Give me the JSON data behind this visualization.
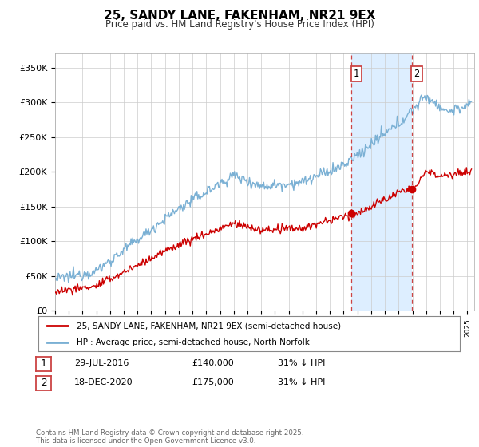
{
  "title": "25, SANDY LANE, FAKENHAM, NR21 9EX",
  "subtitle": "Price paid vs. HM Land Registry's House Price Index (HPI)",
  "ylabel_ticks": [
    "£0",
    "£50K",
    "£100K",
    "£150K",
    "£200K",
    "£250K",
    "£300K",
    "£350K"
  ],
  "ytick_values": [
    0,
    50000,
    100000,
    150000,
    200000,
    250000,
    300000,
    350000
  ],
  "ylim": [
    0,
    370000
  ],
  "xlim_start": 1995.0,
  "xlim_end": 2025.5,
  "line1_color": "#cc0000",
  "line2_color": "#7ab0d4",
  "shade_color": "#ddeeff",
  "vline1_x": 2016.57,
  "vline2_x": 2020.96,
  "vline_color": "#cc4444",
  "marker1_x": 2016.57,
  "marker1_y": 140000,
  "marker2_x": 2020.96,
  "marker2_y": 175000,
  "legend_line1": "25, SANDY LANE, FAKENHAM, NR21 9EX (semi-detached house)",
  "legend_line2": "HPI: Average price, semi-detached house, North Norfolk",
  "table_row1": [
    "1",
    "29-JUL-2016",
    "£140,000",
    "31% ↓ HPI"
  ],
  "table_row2": [
    "2",
    "18-DEC-2020",
    "£175,000",
    "31% ↓ HPI"
  ],
  "footnote": "Contains HM Land Registry data © Crown copyright and database right 2025.\nThis data is licensed under the Open Government Licence v3.0.",
  "background_color": "#ffffff",
  "grid_color": "#cccccc"
}
